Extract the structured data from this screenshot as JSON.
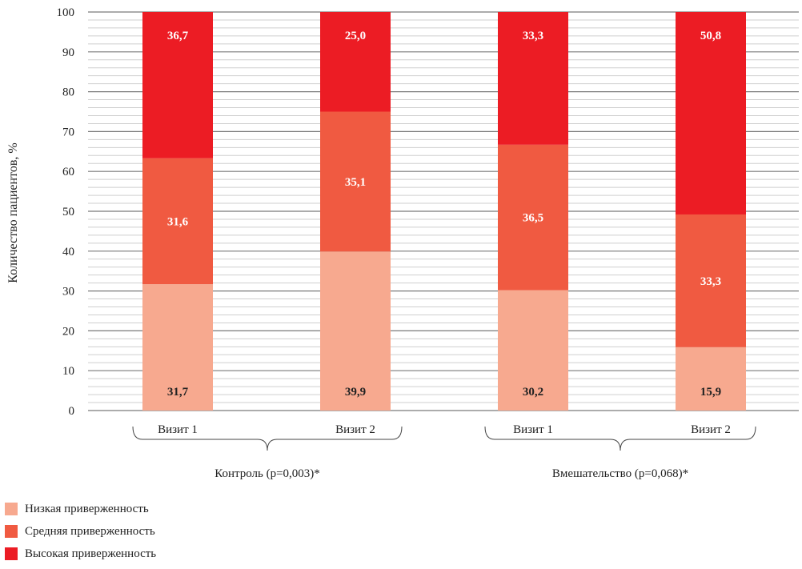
{
  "chart_data": {
    "type": "bar",
    "stacked": true,
    "ylabel": "Количество пациентов, %",
    "ylim": [
      0,
      100
    ],
    "yticks": [
      0,
      10,
      20,
      30,
      40,
      50,
      60,
      70,
      80,
      90,
      100
    ],
    "categories": [
      "Визит 1",
      "Визит 2",
      "Визит 1",
      "Визит 2"
    ],
    "groups": [
      {
        "label": "Контроль (p=0,003)*",
        "categories": [
          0,
          1
        ]
      },
      {
        "label": "Вмешательство (p=0,068)*",
        "categories": [
          2,
          3
        ]
      }
    ],
    "series": [
      {
        "name": "Низкая приверженность",
        "color": "#f7a98f",
        "values": [
          31.7,
          39.9,
          30.2,
          15.9
        ],
        "labels": [
          "31,7",
          "39,9",
          "30,2",
          "15,9"
        ],
        "label_color": "#222222"
      },
      {
        "name": "Средняя приверженность",
        "color": "#f05a41",
        "values": [
          31.6,
          35.1,
          36.5,
          33.3
        ],
        "labels": [
          "31,6",
          "35,1",
          "36,5",
          "33,3"
        ],
        "label_color": "#ffffff"
      },
      {
        "name": "Высокая приверженность",
        "color": "#ec1c24",
        "values": [
          36.7,
          25.0,
          33.3,
          50.8
        ],
        "labels": [
          "36,7",
          "25,0",
          "33,3",
          "50,8"
        ],
        "label_color": "#ffffff"
      }
    ],
    "grid": true,
    "legend_position": "bottom-left"
  }
}
